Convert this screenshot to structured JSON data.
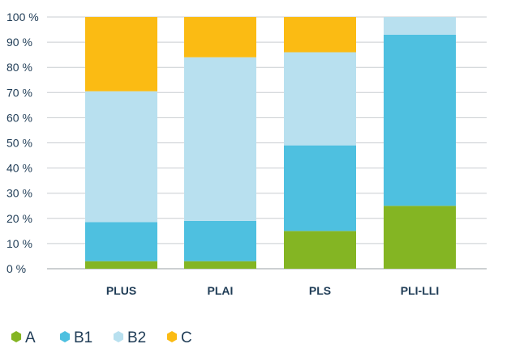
{
  "chart_data": {
    "type": "bar",
    "stacked": true,
    "categories": [
      "PLUS",
      "PLAI",
      "PLS",
      "PLI-LLI"
    ],
    "series": [
      {
        "name": "A",
        "color": "#84b523",
        "values": [
          3,
          3,
          15,
          25
        ]
      },
      {
        "name": "B1",
        "color": "#4ec0e0",
        "values": [
          15.5,
          16,
          34,
          68
        ]
      },
      {
        "name": "B2",
        "color": "#b8e0ef",
        "values": [
          52,
          65,
          37,
          7
        ]
      },
      {
        "name": "C",
        "color": "#fbbb13",
        "values": [
          29.5,
          16,
          14,
          0
        ]
      }
    ],
    "yticks": [
      "0 %",
      "10 %",
      "20 %",
      "30 %",
      "40 %",
      "50 %",
      "60 %",
      "70 %",
      "80 %",
      "90 %",
      "100 %"
    ],
    "ylim": [
      0,
      100
    ],
    "grid": true,
    "legend": "bottom-left",
    "legend_icon": "hexagon-icon"
  }
}
